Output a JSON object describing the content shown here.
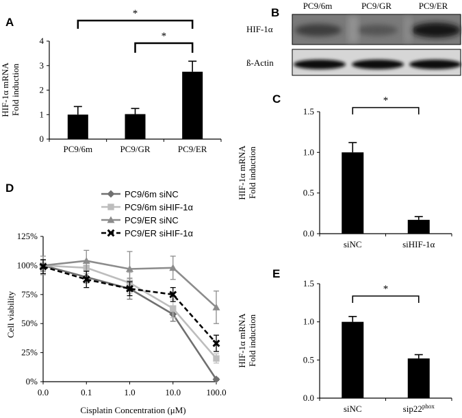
{
  "chart_data": [
    {
      "panel": "A",
      "type": "bar",
      "categories": [
        "PC9/6m",
        "PC9/GR",
        "PC9/ER"
      ],
      "values": [
        1.0,
        1.02,
        2.75
      ],
      "errors": [
        0.33,
        0.23,
        0.43
      ],
      "ylabel": [
        "HIF-1α mRNA",
        "Fold induction"
      ],
      "yticks": [
        "0",
        "1",
        "2",
        "3",
        "4"
      ],
      "ylim": [
        0,
        4
      ],
      "significance": [
        {
          "from": 0,
          "to": 2,
          "label": "*"
        },
        {
          "from": 1,
          "to": 2,
          "label": "*"
        }
      ],
      "color": "#000000"
    },
    {
      "panel": "C",
      "type": "bar",
      "categories": [
        "siNC",
        "siHIF-1α"
      ],
      "values": [
        1.0,
        0.17
      ],
      "errors": [
        0.12,
        0.04
      ],
      "ylabel": [
        "HIF-1α mRNA",
        "Fold induction"
      ],
      "yticks": [
        "0.0",
        "0.5",
        "1.0",
        "1.5"
      ],
      "ylim": [
        0,
        1.5
      ],
      "significance": [
        {
          "from": 0,
          "to": 1,
          "label": "*"
        }
      ],
      "color": "#000000"
    },
    {
      "panel": "E",
      "type": "bar",
      "categories": [
        "siNC",
        "sip22"
      ],
      "category_superscripts": [
        "",
        "phox"
      ],
      "values": [
        1.0,
        0.52
      ],
      "errors": [
        0.07,
        0.05
      ],
      "ylabel": [
        "HIF-1α mRNA",
        "Fold induction"
      ],
      "yticks": [
        "0.0",
        "0.5",
        "1.0",
        "1.5"
      ],
      "ylim": [
        0,
        1.5
      ],
      "significance": [
        {
          "from": 0,
          "to": 1,
          "label": "*"
        }
      ],
      "color": "#000000"
    },
    {
      "panel": "D",
      "type": "line",
      "x": [
        "0.0",
        "0.1",
        "1.0",
        "10.0",
        "100.0"
      ],
      "xlabel": "Cisplatin Concentration (μM)",
      "ylabel": "Cell viability",
      "yticks": [
        "0%",
        "25%",
        "50%",
        "75%",
        "100%",
        "125%"
      ],
      "ylim": [
        0,
        125
      ],
      "series": [
        {
          "name": "PC9/6m siNC",
          "values": [
            100,
            90,
            80,
            58,
            2
          ],
          "errors": [
            5,
            5,
            9,
            6,
            1
          ],
          "color": "#707070",
          "marker": "diamond",
          "dash": "solid"
        },
        {
          "name": "PC9/6m siHIF-1α",
          "values": [
            100,
            98,
            85,
            63,
            20
          ],
          "errors": [
            4,
            5,
            9,
            8,
            4
          ],
          "color": "#bdbdbd",
          "marker": "square",
          "dash": "solid"
        },
        {
          "name": "PC9/ER siNC",
          "values": [
            100,
            104,
            97,
            98,
            64
          ],
          "errors": [
            8,
            9,
            15,
            10,
            14
          ],
          "color": "#8c8c8c",
          "marker": "triangle",
          "dash": "solid"
        },
        {
          "name": "PC9/ER siHIF-1α",
          "values": [
            99,
            88,
            80,
            75,
            33
          ],
          "errors": [
            6,
            7,
            6,
            6,
            7
          ],
          "color": "#000000",
          "marker": "x",
          "dash": "dashed"
        }
      ]
    }
  ],
  "blot": {
    "panel": "B",
    "lanes": [
      "PC9/6m",
      "PC9/GR",
      "PC9/ER"
    ],
    "rows": [
      "HIF-1α",
      "ß-Actin"
    ]
  }
}
